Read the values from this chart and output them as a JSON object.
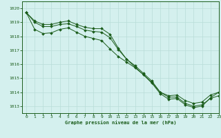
{
  "xlabel": "Graphe pression niveau de la mer (hPa)",
  "background_color": "#d4f0ee",
  "grid_color": "#b8dcd8",
  "line_color": "#1a5c1a",
  "xlim": [
    -0.5,
    23
  ],
  "ylim": [
    1012.5,
    1020.5
  ],
  "yticks": [
    1013,
    1014,
    1015,
    1016,
    1017,
    1018,
    1019,
    1020
  ],
  "xticks": [
    0,
    1,
    2,
    3,
    4,
    5,
    6,
    7,
    8,
    9,
    10,
    11,
    12,
    13,
    14,
    15,
    16,
    17,
    18,
    19,
    20,
    21,
    22,
    23
  ],
  "line_upper": [
    1019.7,
    1019.1,
    1018.85,
    1018.85,
    1019.0,
    1019.1,
    1018.85,
    1018.65,
    1018.55,
    1018.55,
    1018.15,
    1017.15,
    1016.35,
    1015.8,
    1015.25,
    1014.7,
    1014.0,
    1013.75,
    1013.8,
    1013.4,
    1013.2,
    1013.3,
    1013.8,
    1014.0
  ],
  "line_mid": [
    1019.7,
    1019.0,
    1018.7,
    1018.7,
    1018.85,
    1018.9,
    1018.7,
    1018.45,
    1018.35,
    1018.3,
    1017.9,
    1017.05,
    1016.35,
    1015.9,
    1015.35,
    1014.8,
    1014.0,
    1013.65,
    1013.65,
    1013.2,
    1013.0,
    1013.1,
    1013.55,
    1013.75
  ],
  "line_lower": [
    1019.7,
    1018.5,
    1018.2,
    1018.25,
    1018.5,
    1018.6,
    1018.3,
    1018.0,
    1017.85,
    1017.7,
    1017.1,
    1016.55,
    1016.15,
    1015.75,
    1015.25,
    1014.65,
    1013.9,
    1013.5,
    1013.55,
    1013.1,
    1012.9,
    1013.0,
    1013.6,
    1014.0
  ]
}
